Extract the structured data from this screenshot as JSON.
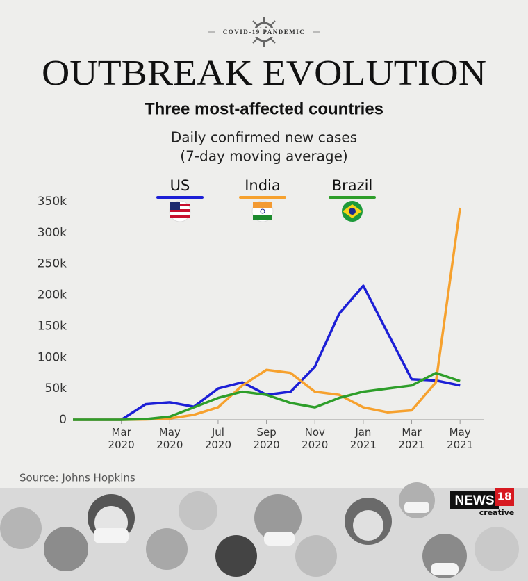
{
  "chart_data": {
    "type": "line",
    "kicker": "COVID-19 PANDEMIC",
    "title": "OUTBREAK EVOLUTION",
    "subtitle": "Three most-affected countries",
    "description": [
      "Daily confirmed new cases",
      "(7-day moving average)"
    ],
    "x": [
      "2020-01",
      "2020-02",
      "2020-03",
      "2020-04",
      "2020-05",
      "2020-06",
      "2020-07",
      "2020-08",
      "2020-09",
      "2020-10",
      "2020-11",
      "2020-12",
      "2021-01",
      "2021-02",
      "2021-03",
      "2021-04",
      "2021-05"
    ],
    "series": [
      {
        "name": "US",
        "color": "#1c1fd6",
        "values": [
          0,
          0,
          0,
          25000,
          28000,
          21000,
          50000,
          60000,
          40000,
          45000,
          85000,
          170000,
          215000,
          140000,
          65000,
          63000,
          55000
        ]
      },
      {
        "name": "India",
        "color": "#f6a12e",
        "values": [
          0,
          0,
          0,
          500,
          2000,
          8000,
          20000,
          55000,
          80000,
          75000,
          45000,
          40000,
          20000,
          12000,
          15000,
          60000,
          340000
        ]
      },
      {
        "name": "Brazil",
        "color": "#2e9e2a",
        "values": [
          0,
          0,
          0,
          1000,
          5000,
          20000,
          35000,
          45000,
          40000,
          27000,
          20000,
          35000,
          45000,
          50000,
          55000,
          75000,
          62000
        ]
      }
    ],
    "xlim": [
      "2020-01",
      "2021-06"
    ],
    "xticks": [
      {
        "value": "2020-03",
        "label": "Mar 2020"
      },
      {
        "value": "2020-05",
        "label": "May 2020"
      },
      {
        "value": "2020-07",
        "label": "Jul 2020"
      },
      {
        "value": "2020-09",
        "label": "Sep 2020"
      },
      {
        "value": "2020-11",
        "label": "Nov 2020"
      },
      {
        "value": "2021-01",
        "label": "Jan 2021"
      },
      {
        "value": "2021-03",
        "label": "Mar 2021"
      },
      {
        "value": "2021-05",
        "label": "May 2021"
      }
    ],
    "ylim": [
      0,
      350000
    ],
    "yticks": [
      0,
      {
        "value": 50000,
        "label": "50k"
      },
      {
        "value": 100000,
        "label": "100k"
      },
      {
        "value": 150000,
        "label": "150k"
      },
      {
        "value": 200000,
        "label": "200k"
      },
      {
        "value": 250000,
        "label": "250k"
      },
      {
        "value": 300000,
        "label": "300k"
      },
      {
        "value": 350000,
        "label": "350k"
      }
    ],
    "grid": false,
    "source": "Source: Johns Hopkins",
    "brand": {
      "name": "NEWS",
      "number": "18",
      "tagline": "creative"
    }
  }
}
